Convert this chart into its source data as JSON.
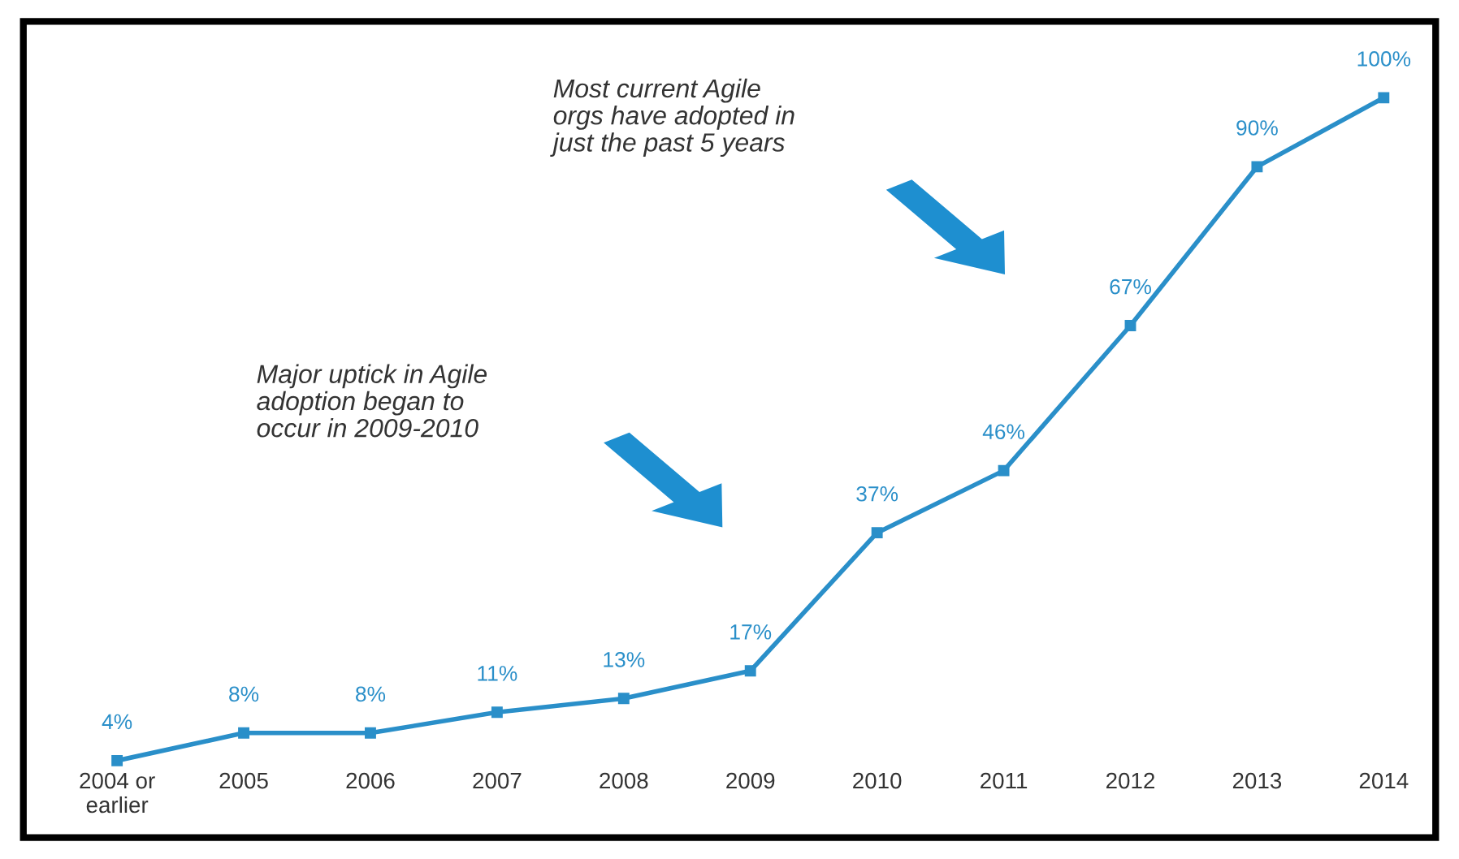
{
  "chart_data": {
    "type": "line",
    "categories": [
      "2004 or\nearlier",
      "2005",
      "2006",
      "2007",
      "2008",
      "2009",
      "2010",
      "2011",
      "2012",
      "2013",
      "2014"
    ],
    "series": [
      {
        "color": "#2a8fc9",
        "values": [
          4,
          8,
          8,
          11,
          13,
          17,
          37,
          46,
          67,
          90,
          100
        ],
        "value_labels": [
          "4%",
          "8%",
          "8%",
          "11%",
          "13%",
          "17%",
          "37%",
          "46%",
          "67%",
          "90%",
          "100%"
        ]
      }
    ],
    "marker": "square",
    "line_style": "solid",
    "grid": false,
    "legend": false,
    "annotations": [
      "Major uptick in Agile\nadoption began to\noccur in 2009-2010",
      "Most current Agile\norgs have adopted in\njust the past 5 years"
    ]
  }
}
